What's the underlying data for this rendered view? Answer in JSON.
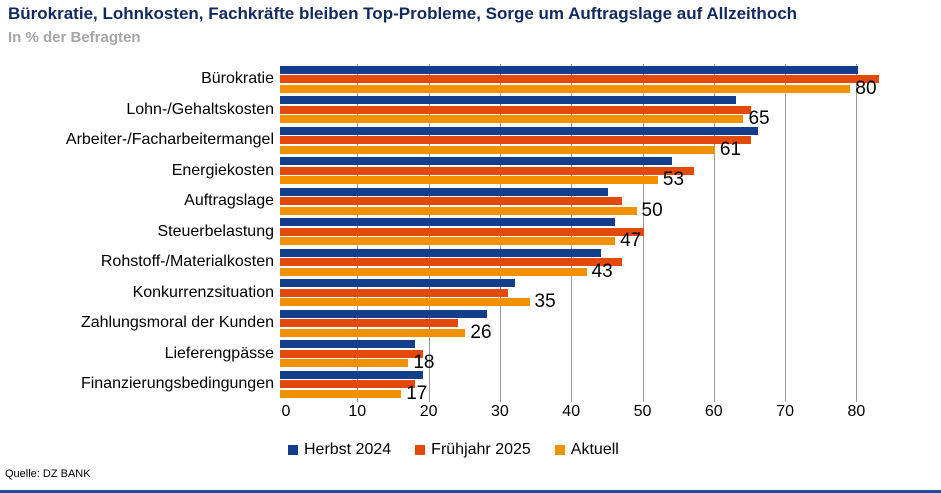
{
  "header": {
    "title": "Bürokratie, Lohnkosten, Fachkräfte bleiben Top-Probleme, Sorge um Auftragslage auf Allzeithoch",
    "subtitle": "In % der Befragten"
  },
  "chart_data": {
    "type": "bar",
    "orientation": "horizontal",
    "title": "Bürokratie, Lohnkosten, Fachkräfte bleiben Top-Probleme, Sorge um Auftragslage auf Allzeithoch",
    "subtitle": "In % der Befragten",
    "categories": [
      "Bürokratie",
      "Lohn-/Gehaltskosten",
      "Arbeiter-/Facharbeitermangel",
      "Energiekosten",
      "Auftragslage",
      "Steuerbelastung",
      "Rohstoff-/Materialkosten",
      "Konkurrenzsituation",
      "Zahlungsmoral der Kunden",
      "Lieferengpässe",
      "Finanzierungsbedingungen"
    ],
    "series": [
      {
        "name": "Herbst 2024",
        "color": "#123E8C",
        "values": [
          81,
          64,
          67,
          55,
          46,
          47,
          45,
          33,
          29,
          19,
          20
        ]
      },
      {
        "name": "Frühjahr 2025",
        "color": "#E4490C",
        "values": [
          84,
          66,
          66,
          58,
          48,
          51,
          48,
          32,
          25,
          20,
          19
        ]
      },
      {
        "name": "Aktuell",
        "color": "#F29100",
        "values": [
          80,
          65,
          61,
          53,
          50,
          47,
          43,
          35,
          26,
          18,
          17
        ]
      }
    ],
    "data_labels_series": "Aktuell",
    "data_labels": [
      80,
      65,
      61,
      53,
      50,
      47,
      43,
      35,
      26,
      18,
      17
    ],
    "x_ticks": [
      0,
      10,
      20,
      30,
      40,
      50,
      60,
      70,
      80
    ],
    "xlim": [
      0,
      86
    ],
    "xlabel": "",
    "ylabel": "",
    "grid": true,
    "legend_position": "bottom"
  },
  "footer": {
    "source": "Quelle: DZ BANK"
  },
  "colors": {
    "title": "#132A5E",
    "subtitle": "#A6A6A6",
    "gridline": "#9B9B9B",
    "bottom_rule": "#1D4F9C"
  }
}
